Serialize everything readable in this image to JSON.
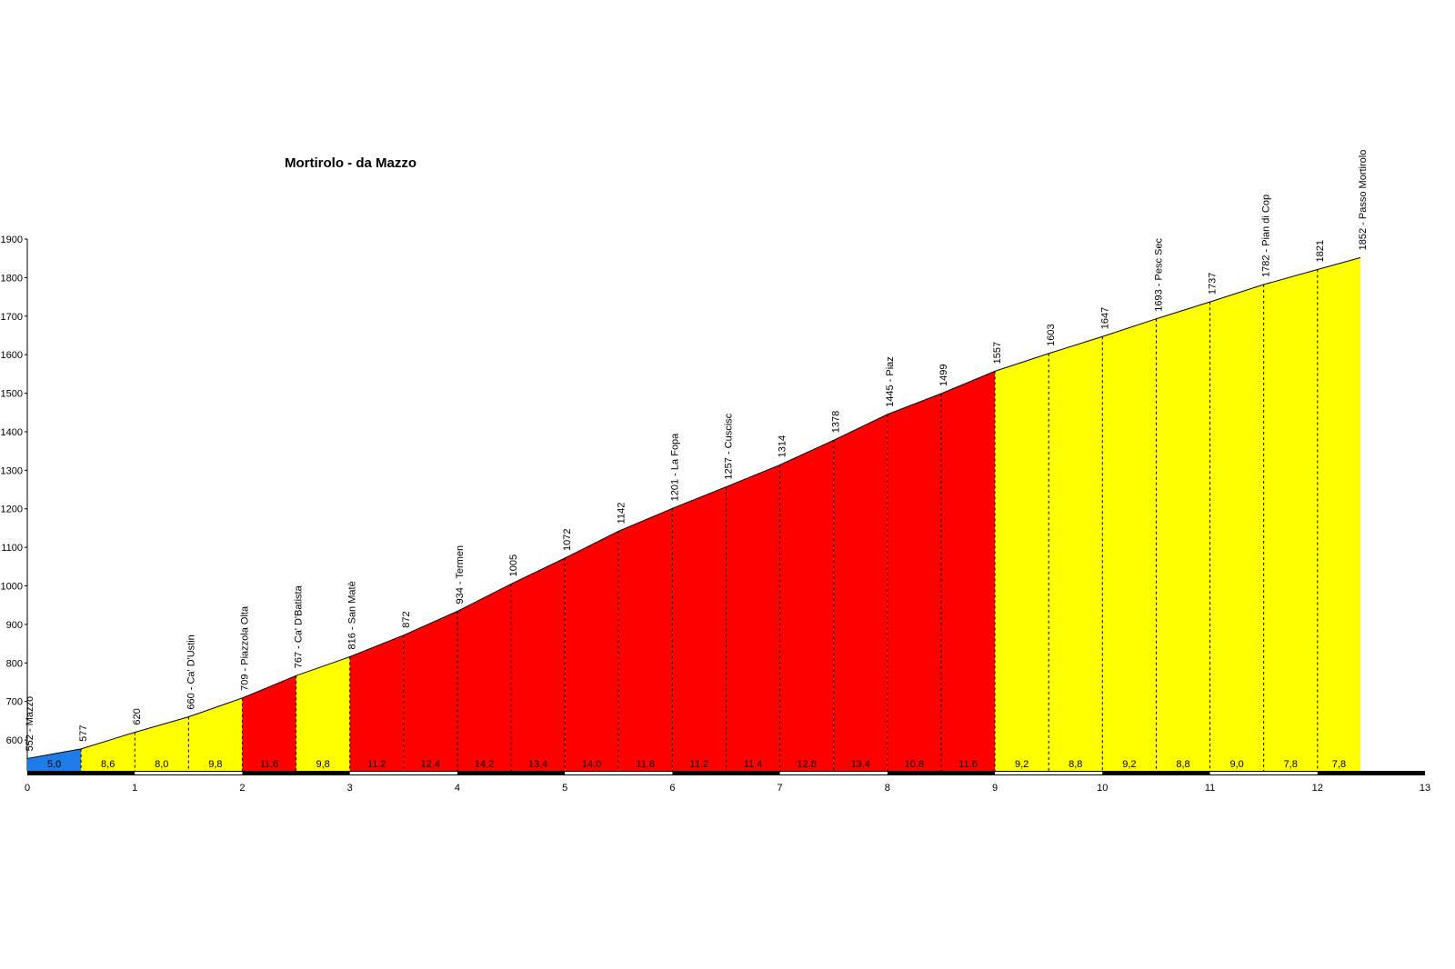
{
  "chart_data": {
    "type": "area",
    "title": "Mortirolo - da Mazzo",
    "x": [
      0,
      0.5,
      1,
      1.5,
      2,
      2.5,
      3,
      3.5,
      4,
      4.5,
      5,
      5.5,
      6,
      6.5,
      7,
      7.5,
      8,
      8.5,
      9,
      9.5,
      10,
      10.5,
      11,
      11.5,
      12,
      12.4
    ],
    "values": [
      552,
      577,
      620,
      660,
      709,
      767,
      816,
      872,
      934,
      1005,
      1072,
      1142,
      1201,
      1257,
      1314,
      1378,
      1445,
      1499,
      1557,
      1603,
      1647,
      1693,
      1737,
      1782,
      1821,
      1852
    ],
    "value_labels": [
      "552 - Mazzo",
      "577",
      "620",
      "660 - Ca' D'Ustin",
      "709 - Piazzola Olta",
      "767 - Ca' D'Batista",
      "816 - San Matè",
      "872",
      "934 - Termen",
      "1005",
      "1072",
      "1142",
      "1201 - La Fopa",
      "1257 - Cuscisc",
      "1314",
      "1378",
      "1445 - Piaz",
      "1499",
      "1557",
      "1603",
      "1647",
      "1693 - Pesc Sec",
      "1737",
      "1782 - Pian di Cop",
      "1821",
      "1852 - Passo Mortirolo"
    ],
    "gradients": [
      5.0,
      8.6,
      8.0,
      9.8,
      11.6,
      9.8,
      11.2,
      12.4,
      14.2,
      13.4,
      14.0,
      11.8,
      11.2,
      11.4,
      12.8,
      13.4,
      10.8,
      11.6,
      9.2,
      8.8,
      9.2,
      8.8,
      9.0,
      7.8,
      7.8
    ],
    "gradient_labels": [
      "5,0",
      "8,6",
      "8,0",
      "9,8",
      "11,6",
      "9,8",
      "11,2",
      "12,4",
      "14,2",
      "13,4",
      "14,0",
      "11,8",
      "11,2",
      "11,4",
      "12,8",
      "13,4",
      "10,8",
      "11,6",
      "9,2",
      "8,8",
      "9,2",
      "8,8",
      "9,0",
      "7,8",
      "7,8"
    ],
    "segment_colors": [
      "#1e7be8",
      "#ffff00",
      "#ffff00",
      "#ffff00",
      "#ff0000",
      "#ffff00",
      "#ff0000",
      "#ff0000",
      "#ff0000",
      "#ff0000",
      "#ff0000",
      "#ff0000",
      "#ff0000",
      "#ff0000",
      "#ff0000",
      "#ff0000",
      "#ff0000",
      "#ff0000",
      "#ffff00",
      "#ffff00",
      "#ffff00",
      "#ffff00",
      "#ffff00",
      "#ffff00",
      "#ffff00"
    ],
    "xlim": [
      0,
      13
    ],
    "xticks": [
      0,
      1,
      2,
      3,
      4,
      5,
      6,
      7,
      8,
      9,
      10,
      11,
      12,
      13
    ],
    "ylim": [
      520,
      1900
    ],
    "yticks": [
      600,
      700,
      800,
      900,
      1000,
      1100,
      1200,
      1300,
      1400,
      1500,
      1600,
      1700,
      1800,
      1900
    ]
  }
}
